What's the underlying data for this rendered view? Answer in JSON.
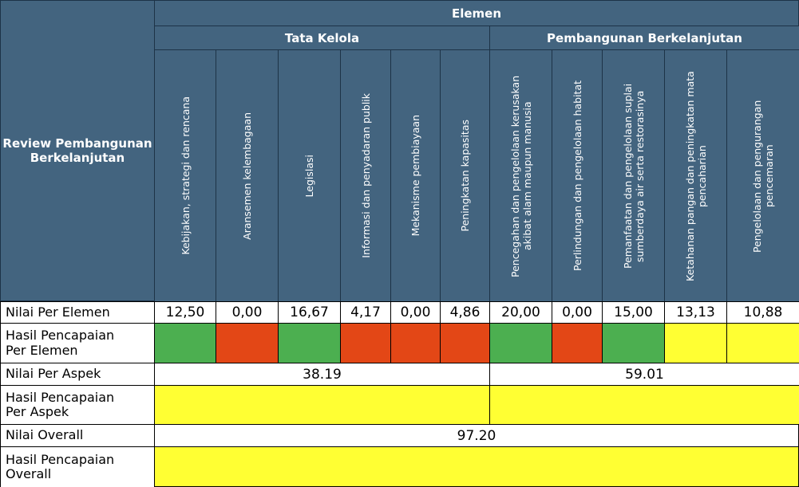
{
  "table": {
    "corner": "Review Pembangunan Berkelanjutan",
    "group": "Elemen",
    "row_labels": [
      "Nilai Per Elemen",
      "Hasil Pencapaian Per Elemen",
      "Nilai Per Aspek",
      "Hasil Pencapaian Per Aspek",
      "Nilai Overall",
      "Hasil Pencapaian Overall"
    ],
    "aspects": [
      {
        "name": "Tata Kelola",
        "value": "38.19",
        "color": "#ffff33",
        "elements": [
          {
            "name": "Kebijakan, strategi dan rencana",
            "value": "12,50",
            "color": "#4caf50"
          },
          {
            "name": "Aransemen kelembagaan",
            "value": "0,00",
            "color": "#e34716"
          },
          {
            "name": "Legislasi",
            "value": "16,67",
            "color": "#4caf50"
          },
          {
            "name": "Informasi dan penyadaran publik",
            "value": "4,17",
            "color": "#e34716"
          },
          {
            "name": "Mekanisme pembiayaan",
            "value": "0,00",
            "color": "#e34716"
          },
          {
            "name": "Peningkatan kapasitas",
            "value": "4,86",
            "color": "#e34716"
          }
        ]
      },
      {
        "name": "Pembangunan Berkelanjutan",
        "value": "59.01",
        "color": "#ffff33",
        "elements": [
          {
            "name": "Pencegahan dan pengelolaan kerusakan akibat alam maupun manusia",
            "value": "20,00",
            "color": "#4caf50"
          },
          {
            "name": "Perlindungan dan pengelolaan habitat",
            "value": "0,00",
            "color": "#e34716"
          },
          {
            "name": "Pemanfaatan dan pengelolaan suplai sumberdaya air serta restorasinya",
            "value": "15,00",
            "color": "#4caf50"
          },
          {
            "name": "Ketahanan pangan dan peningkatan mata pencaharian",
            "value": "13,13",
            "color": "#ffff33"
          },
          {
            "name": "Pengelolaan dan pengurangan pencemaran",
            "value": "10,88",
            "color": "#ffff33"
          }
        ]
      }
    ],
    "overall": {
      "value": "97.20",
      "color": "#ffff33"
    }
  }
}
